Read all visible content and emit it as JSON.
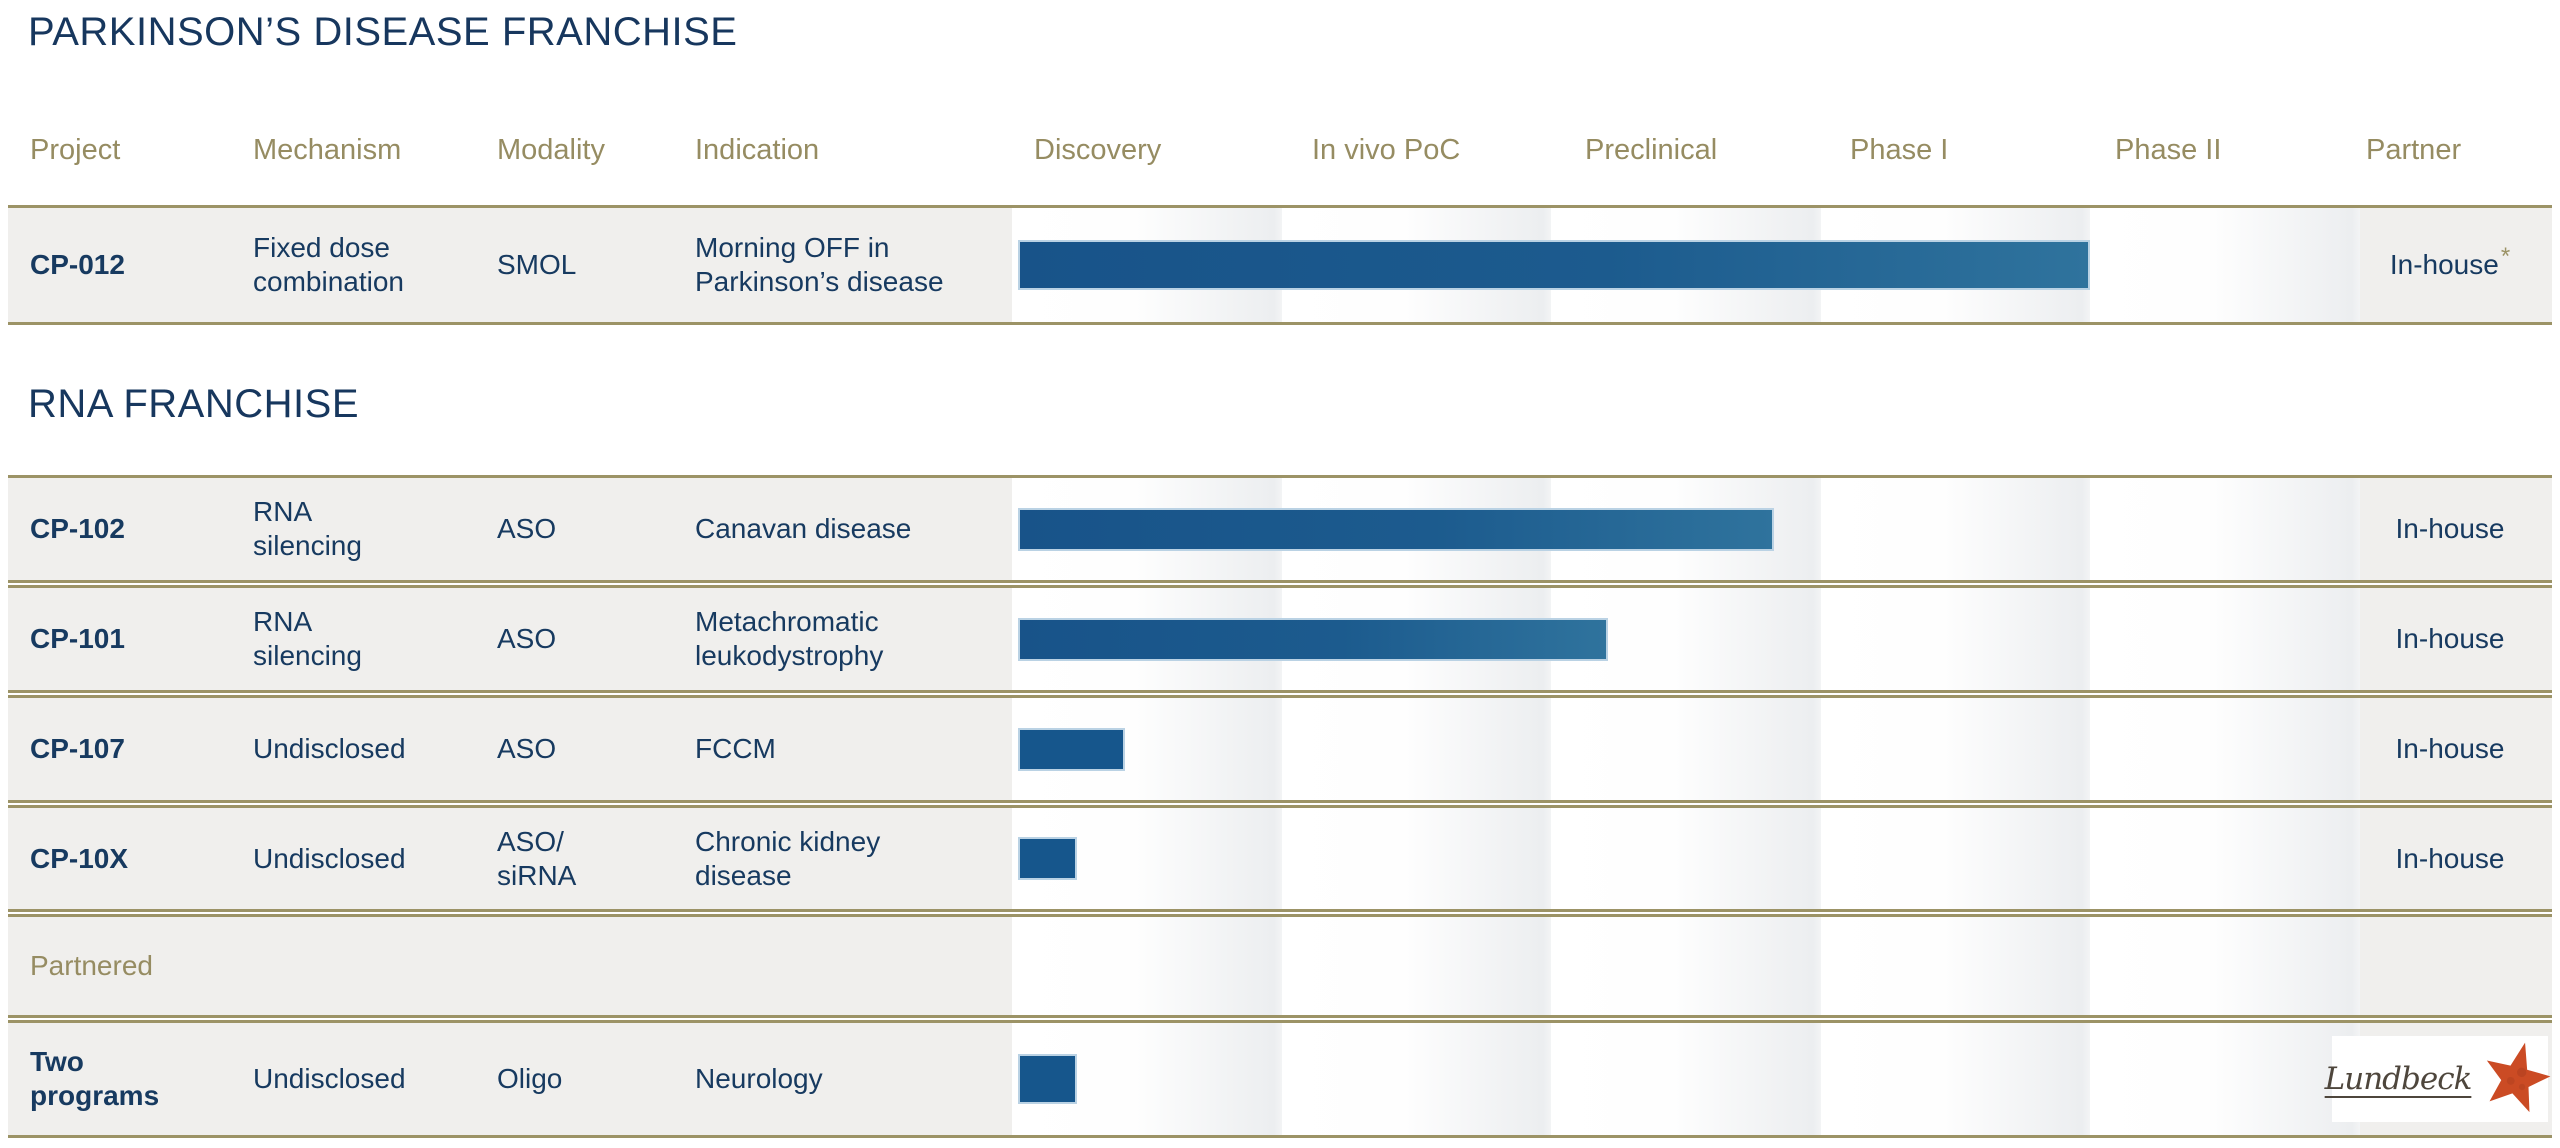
{
  "palette": {
    "navy_text": "#173a60",
    "title_navy": "#17375e",
    "olive_text": "#968c62",
    "olive_border": "#9c9366",
    "row_gray": "#f0efed",
    "band_gray": "#eceef0",
    "bar_blue": "#16568c",
    "bar_blue_light": "#2f739d",
    "bar_edge_blue": "#bad2e4",
    "logo_red": "#cb4b24",
    "logo_text_color": "#4e463c"
  },
  "columns": [
    {
      "label": "Project"
    },
    {
      "label": "Mechanism"
    },
    {
      "label": "Modality"
    },
    {
      "label": "Indication"
    },
    {
      "label": "Discovery"
    },
    {
      "label": "In vivo PoC"
    },
    {
      "label": "Preclinical"
    },
    {
      "label": "Phase I"
    },
    {
      "label": "Phase II"
    },
    {
      "label": "Partner"
    }
  ],
  "sections": [
    {
      "title": "PARKINSON’S DISEASE FRANCHISE",
      "rows": [
        {
          "project": [
            "CP-012"
          ],
          "mechanism": [
            "Fixed dose",
            "combination"
          ],
          "modality": [
            "SMOL"
          ],
          "indication": [
            "Morning OFF in",
            "Parkinson’s disease"
          ],
          "partner": "In-house",
          "partner_asterisk": "*",
          "progress_phases": 4.0
        }
      ]
    },
    {
      "title": "RNA FRANCHISE",
      "rows": [
        {
          "project": [
            "CP-102"
          ],
          "mechanism": [
            "RNA",
            "silencing"
          ],
          "modality": [
            "ASO"
          ],
          "indication": [
            "Canavan disease"
          ],
          "partner": "In-house",
          "progress_phases": 2.82
        },
        {
          "project": [
            "CP-101"
          ],
          "mechanism": [
            "RNA",
            "silencing"
          ],
          "modality": [
            "ASO"
          ],
          "indication": [
            "Metachromatic",
            "leukodystrophy"
          ],
          "partner": "In-house",
          "progress_phases": 2.2
        },
        {
          "project": [
            "CP-107"
          ],
          "mechanism": [
            "Undisclosed"
          ],
          "modality": [
            "ASO"
          ],
          "indication": [
            "FCCM"
          ],
          "partner": "In-house",
          "progress_phases": 0.4
        },
        {
          "project": [
            "CP-10X"
          ],
          "mechanism": [
            "Undisclosed"
          ],
          "modality": [
            "ASO/",
            "siRNA"
          ],
          "indication": [
            "Chronic kidney",
            "disease"
          ],
          "partner": "In-house",
          "progress_phases": 0.22
        },
        {
          "row_label": "Partnered"
        },
        {
          "project": [
            "Two",
            "programs"
          ],
          "mechanism": [
            "Undisclosed"
          ],
          "modality": [
            "Oligo"
          ],
          "indication": [
            "Neurology"
          ],
          "partner_logo": "Lundbeck",
          "progress_phases": 0.22
        }
      ]
    }
  ],
  "chart_data": {
    "type": "bar",
    "orientation": "horizontal",
    "title": "Drug development pipeline progress by project",
    "stage_axis": [
      "Discovery",
      "In vivo PoC",
      "Preclinical",
      "Phase I",
      "Phase II"
    ],
    "categories": [
      "CP-012",
      "CP-102",
      "CP-101",
      "CP-107",
      "CP-10X",
      "Two programs"
    ],
    "values": [
      4.0,
      2.82,
      2.2,
      0.4,
      0.22,
      0.22
    ],
    "value_unit": "stage columns spanned (1 unit = one full stage; 4.0 = bar ends at Phase I / Phase II boundary)",
    "xlim": [
      0,
      5
    ],
    "groups": {
      "PARKINSON’S DISEASE FRANCHISE": [
        "CP-012"
      ],
      "RNA FRANCHISE": [
        "CP-102",
        "CP-101",
        "CP-107",
        "CP-10X",
        "Two programs"
      ]
    },
    "partners": [
      "In-house*",
      "In-house",
      "In-house",
      "In-house",
      "In-house",
      "Lundbeck"
    ],
    "legend": "none",
    "grid": "vertical stage bands with white-to-gray gradient"
  }
}
